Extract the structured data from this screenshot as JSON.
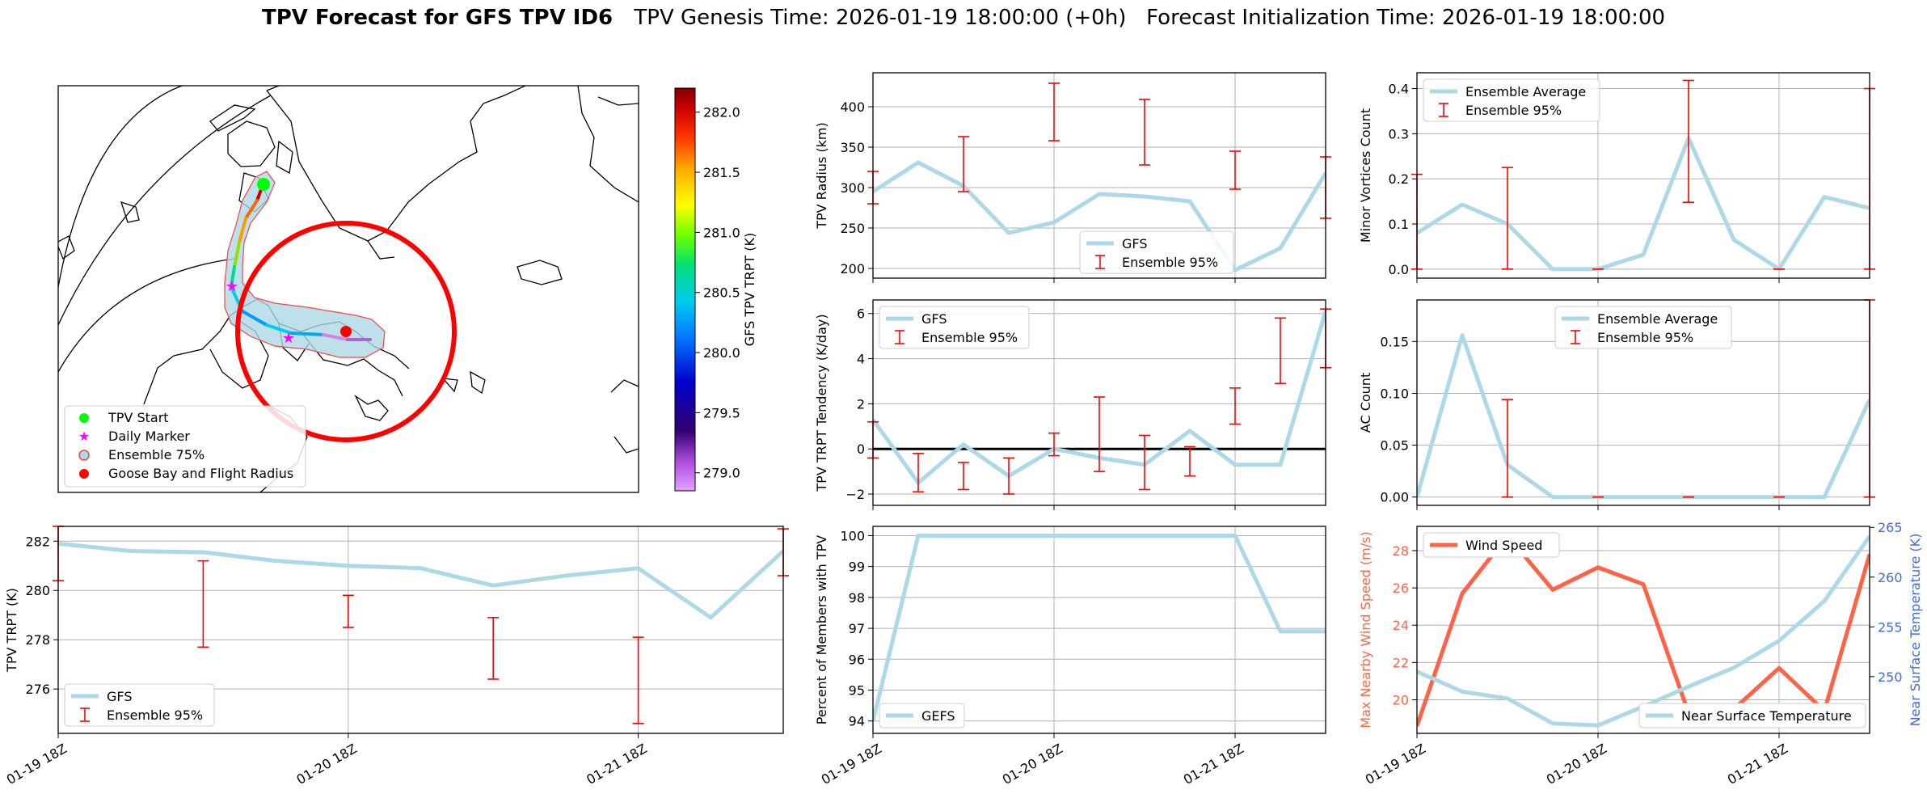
{
  "figure": {
    "title_bold": "TPV Forecast for GFS TPV ID6",
    "title_rest": "TPV Genesis Time: 2026-01-19 18:00:00 (+0h)   Forecast Initialization Time: 2026-01-19 18:00:00"
  },
  "colors": {
    "gfs_line": "#add8e6",
    "ensemble_error": "#ff0000",
    "zero_line": "#000000",
    "wind": "#ff6347",
    "temp_axis": "#4169e1",
    "grid": "#b0b0b0",
    "tpv_start": "#00ff00",
    "daily_marker": "#ff00ff",
    "goose_bay": "#ff0000",
    "ensemble75_fill": "#add8e6",
    "ensemble75_edge": "#ff4040"
  },
  "chart_data": [
    {
      "id": "map",
      "type": "map",
      "legend": [
        "TPV Start",
        "Daily Marker",
        "Ensemble 75%",
        "Goose Bay and Flight Radius"
      ],
      "colorbar": {
        "label": "GFS TPV TRPT (K)",
        "range": [
          278.85,
          282.2
        ],
        "ticks": [
          279.0,
          279.5,
          280.0,
          280.5,
          281.0,
          281.5,
          282.0
        ],
        "tick_labels": [
          "279.0",
          "279.5",
          "280.0",
          "280.5",
          "281.0",
          "281.5",
          "282.0"
        ]
      }
    },
    {
      "id": "trpt-timeseries",
      "type": "line",
      "ylabel": "TPV TRPT (K)",
      "x": [
        0,
        0.5,
        1,
        1.5,
        2,
        2.5,
        3,
        3.5,
        4,
        4.5,
        5
      ],
      "xlim": [
        0,
        5
      ],
      "xticks": [
        0,
        2,
        4
      ],
      "xtick_labels": [
        "01-19 18Z",
        "01-20 18Z",
        "01-21 18Z"
      ],
      "ylim": [
        274.2,
        282.6
      ],
      "yticks": [
        276,
        278,
        280,
        282
      ],
      "ytick_labels": [
        "276",
        "278",
        "280",
        "282"
      ],
      "legend": "bottom-left",
      "series": [
        {
          "name": "GFS",
          "values": [
            281.9,
            281.6,
            281.55,
            281.2,
            281.0,
            280.9,
            280.2,
            280.6,
            280.9,
            278.9,
            281.6
          ]
        }
      ],
      "errorbars": {
        "name": "Ensemble 95%",
        "items": [
          {
            "x": 0,
            "low": 280.4,
            "high": 282.6
          },
          {
            "x": 1,
            "low": 277.7,
            "high": 281.2
          },
          {
            "x": 2,
            "low": 278.5,
            "high": 279.8
          },
          {
            "x": 3,
            "low": 276.4,
            "high": 278.9
          },
          {
            "x": 4,
            "low": 274.6,
            "high": 278.1
          },
          {
            "x": 5,
            "low": 280.6,
            "high": 282.5
          }
        ]
      }
    },
    {
      "id": "radius",
      "type": "line",
      "ylabel": "TPV Radius (km)",
      "x": [
        0,
        0.5,
        1,
        1.5,
        2,
        2.5,
        3,
        3.5,
        4,
        4.5,
        5
      ],
      "xlim": [
        0,
        5
      ],
      "ylim": [
        188,
        442
      ],
      "yticks": [
        200,
        250,
        300,
        350,
        400
      ],
      "ytick_labels": [
        "200",
        "250",
        "300",
        "350",
        "400"
      ],
      "legend": "bottom-center",
      "series": [
        {
          "name": "GFS",
          "values": [
            295,
            331,
            302,
            244,
            257,
            292,
            289,
            283,
            198,
            225,
            318
          ]
        }
      ],
      "errorbars": {
        "name": "Ensemble 95%",
        "items": [
          {
            "x": 0,
            "low": 280,
            "high": 320
          },
          {
            "x": 1,
            "low": 295,
            "high": 363
          },
          {
            "x": 2,
            "low": 358,
            "high": 429
          },
          {
            "x": 3,
            "low": 328,
            "high": 409
          },
          {
            "x": 4,
            "low": 298,
            "high": 345
          },
          {
            "x": 5,
            "low": 262,
            "high": 338
          }
        ]
      }
    },
    {
      "id": "tendency",
      "type": "line",
      "ylabel": "TPV TRPT Tendency (K/day)",
      "x": [
        0,
        0.5,
        1,
        1.5,
        2,
        2.5,
        3,
        3.5,
        4,
        4.5,
        5
      ],
      "xlim": [
        0,
        5
      ],
      "ylim": [
        -2.5,
        6.6
      ],
      "yticks": [
        -2,
        0,
        2,
        4,
        6
      ],
      "ytick_labels": [
        "−2",
        "0",
        "2",
        "4",
        "6"
      ],
      "zero_line": 0,
      "legend": "top-left",
      "series": [
        {
          "name": "GFS",
          "values": [
            1.3,
            -1.5,
            0.2,
            -1.2,
            0.0,
            -0.4,
            -0.7,
            0.8,
            -0.7,
            -0.7,
            6.1
          ]
        }
      ],
      "errorbars": {
        "name": "Ensemble 95%",
        "items": [
          {
            "x": 0,
            "low": -0.4,
            "high": 1.2
          },
          {
            "x": 0.5,
            "low": -1.9,
            "high": -0.2
          },
          {
            "x": 1,
            "low": -1.8,
            "high": -0.6
          },
          {
            "x": 1.5,
            "low": -2.0,
            "high": -0.4
          },
          {
            "x": 2,
            "low": -0.3,
            "high": 0.7
          },
          {
            "x": 2.5,
            "low": -1.0,
            "high": 2.3
          },
          {
            "x": 3,
            "low": -1.8,
            "high": 0.6
          },
          {
            "x": 3.5,
            "low": -1.2,
            "high": 0.1
          },
          {
            "x": 4,
            "low": 1.1,
            "high": 2.7
          },
          {
            "x": 4.5,
            "low": 2.9,
            "high": 5.8
          },
          {
            "x": 5,
            "low": 3.6,
            "high": 6.2
          }
        ]
      }
    },
    {
      "id": "percent-members",
      "type": "line",
      "ylabel": "Percent of Members with TPV",
      "x": [
        0,
        0.5,
        1,
        1.5,
        2,
        2.5,
        3,
        3.5,
        4,
        4.5,
        5
      ],
      "xlim": [
        0,
        5
      ],
      "xticks": [
        0,
        2,
        4
      ],
      "xtick_labels": [
        "01-19 18Z",
        "01-20 18Z",
        "01-21 18Z"
      ],
      "ylim": [
        93.6,
        100.3
      ],
      "yticks": [
        94,
        95,
        96,
        97,
        98,
        99,
        100
      ],
      "ytick_labels": [
        "94",
        "95",
        "96",
        "97",
        "98",
        "99",
        "100"
      ],
      "legend": "bottom-left",
      "series": [
        {
          "name": "GEFS",
          "values": [
            94.0,
            100,
            100,
            100,
            100,
            100,
            100,
            100,
            100,
            96.9,
            96.9
          ]
        }
      ]
    },
    {
      "id": "minor-vortices",
      "type": "line",
      "ylabel": "Minor Vortices Count",
      "x": [
        0,
        0.5,
        1,
        1.5,
        2,
        2.5,
        3,
        3.5,
        4,
        4.5,
        5
      ],
      "xlim": [
        0,
        5
      ],
      "ylim": [
        -0.02,
        0.435
      ],
      "yticks": [
        0.0,
        0.1,
        0.2,
        0.3,
        0.4
      ],
      "ytick_labels": [
        "0.0",
        "0.1",
        "0.2",
        "0.3",
        "0.4"
      ],
      "legend": "top-left",
      "series": [
        {
          "name": "Ensemble Average",
          "values": [
            0.08,
            0.143,
            0.1,
            0.0,
            0.0,
            0.032,
            0.29,
            0.065,
            0.0,
            0.16,
            0.135
          ]
        }
      ],
      "errorbars": {
        "name": "Ensemble 95%",
        "items": [
          {
            "x": 0,
            "low": 0.0,
            "high": 0.21
          },
          {
            "x": 1,
            "low": 0.0,
            "high": 0.225
          },
          {
            "x": 2,
            "low": 0.0,
            "high": 0.0
          },
          {
            "x": 3,
            "low": 0.148,
            "high": 0.418
          },
          {
            "x": 4,
            "low": 0.0,
            "high": 0.0
          },
          {
            "x": 5,
            "low": 0.0,
            "high": 0.4
          }
        ]
      }
    },
    {
      "id": "ac-count",
      "type": "line",
      "ylabel": "AC Count",
      "x": [
        0,
        0.5,
        1,
        1.5,
        2,
        2.5,
        3,
        3.5,
        4,
        4.5,
        5
      ],
      "xlim": [
        0,
        5
      ],
      "ylim": [
        -0.008,
        0.19
      ],
      "yticks": [
        0.0,
        0.05,
        0.1,
        0.15
      ],
      "ytick_labels": [
        "0.00",
        "0.05",
        "0.10",
        "0.15"
      ],
      "legend": "top-center",
      "series": [
        {
          "name": "Ensemble Average",
          "values": [
            0.0,
            0.156,
            0.031,
            0.0,
            0.0,
            0.0,
            0.0,
            0.0,
            0.0,
            0.0,
            0.094
          ]
        }
      ],
      "errorbars": {
        "name": "Ensemble 95%",
        "items": [
          {
            "x": 1,
            "low": 0.0,
            "high": 0.094
          },
          {
            "x": 2,
            "low": 0.0,
            "high": 0.0
          },
          {
            "x": 3,
            "low": 0.0,
            "high": 0.0
          },
          {
            "x": 4,
            "low": 0.0,
            "high": 0.0
          },
          {
            "x": 5,
            "low": 0.0,
            "high": 0.19
          }
        ]
      }
    },
    {
      "id": "wind-temp",
      "type": "line",
      "ylabel_left": "Max Nearby Wind Speed (m/s)",
      "ylabel_right": "Near Surface Temperature (K)",
      "x": [
        0,
        0.5,
        1,
        1.5,
        2,
        2.5,
        3,
        3.5,
        4,
        4.5,
        5
      ],
      "xlim": [
        0,
        5
      ],
      "xticks": [
        0,
        2,
        4
      ],
      "xtick_labels": [
        "01-19 18Z",
        "01-20 18Z",
        "01-21 18Z"
      ],
      "ylim_left": [
        18.2,
        29.3
      ],
      "yticks_left": [
        20,
        22,
        24,
        26,
        28
      ],
      "ytick_labels_left": [
        "20",
        "22",
        "24",
        "26",
        "28"
      ],
      "ylim_right": [
        244.3,
        265.1
      ],
      "yticks_right": [
        250,
        255,
        260,
        265
      ],
      "ytick_labels_right": [
        "250",
        "255",
        "260",
        "265"
      ],
      "series": [
        {
          "name": "Wind Speed",
          "axis": "left",
          "values": [
            18.6,
            25.7,
            28.8,
            25.9,
            27.1,
            26.2,
            19.3,
            19.5,
            21.7,
            19.4,
            27.8
          ]
        },
        {
          "name": "Near Surface Temperature",
          "axis": "right",
          "values": [
            250.5,
            248.5,
            247.8,
            245.3,
            245.1,
            247.0,
            249.0,
            250.9,
            253.6,
            257.6,
            264.1
          ]
        }
      ]
    }
  ]
}
